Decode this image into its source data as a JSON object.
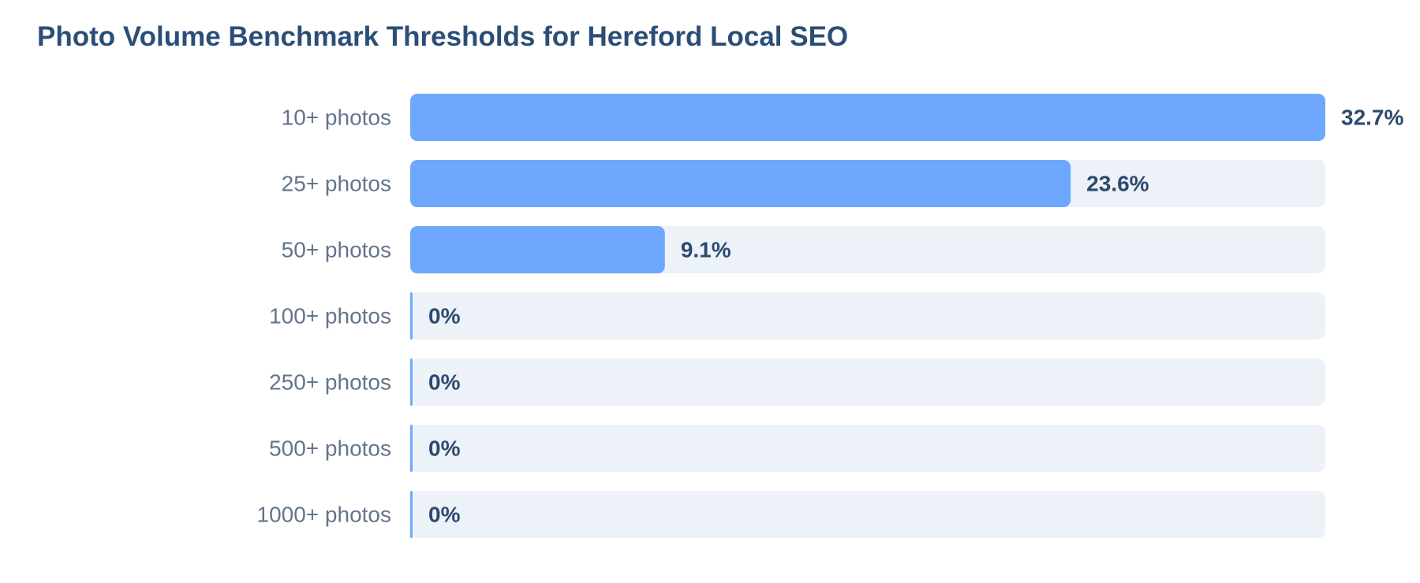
{
  "chart_data": {
    "type": "bar",
    "orientation": "horizontal",
    "title": "Photo Volume Benchmark Thresholds for Hereford Local SEO",
    "categories": [
      "10+ photos",
      "25+ photos",
      "50+ photos",
      "100+ photos",
      "250+ photos",
      "500+ photos",
      "1000+ photos"
    ],
    "values": [
      32.7,
      23.6,
      9.1,
      0,
      0,
      0,
      0
    ],
    "value_labels": [
      "32.7%",
      "23.6%",
      "9.1%",
      "0%",
      "0%",
      "0%",
      "0%"
    ],
    "color": "#6ea8fe"
  }
}
